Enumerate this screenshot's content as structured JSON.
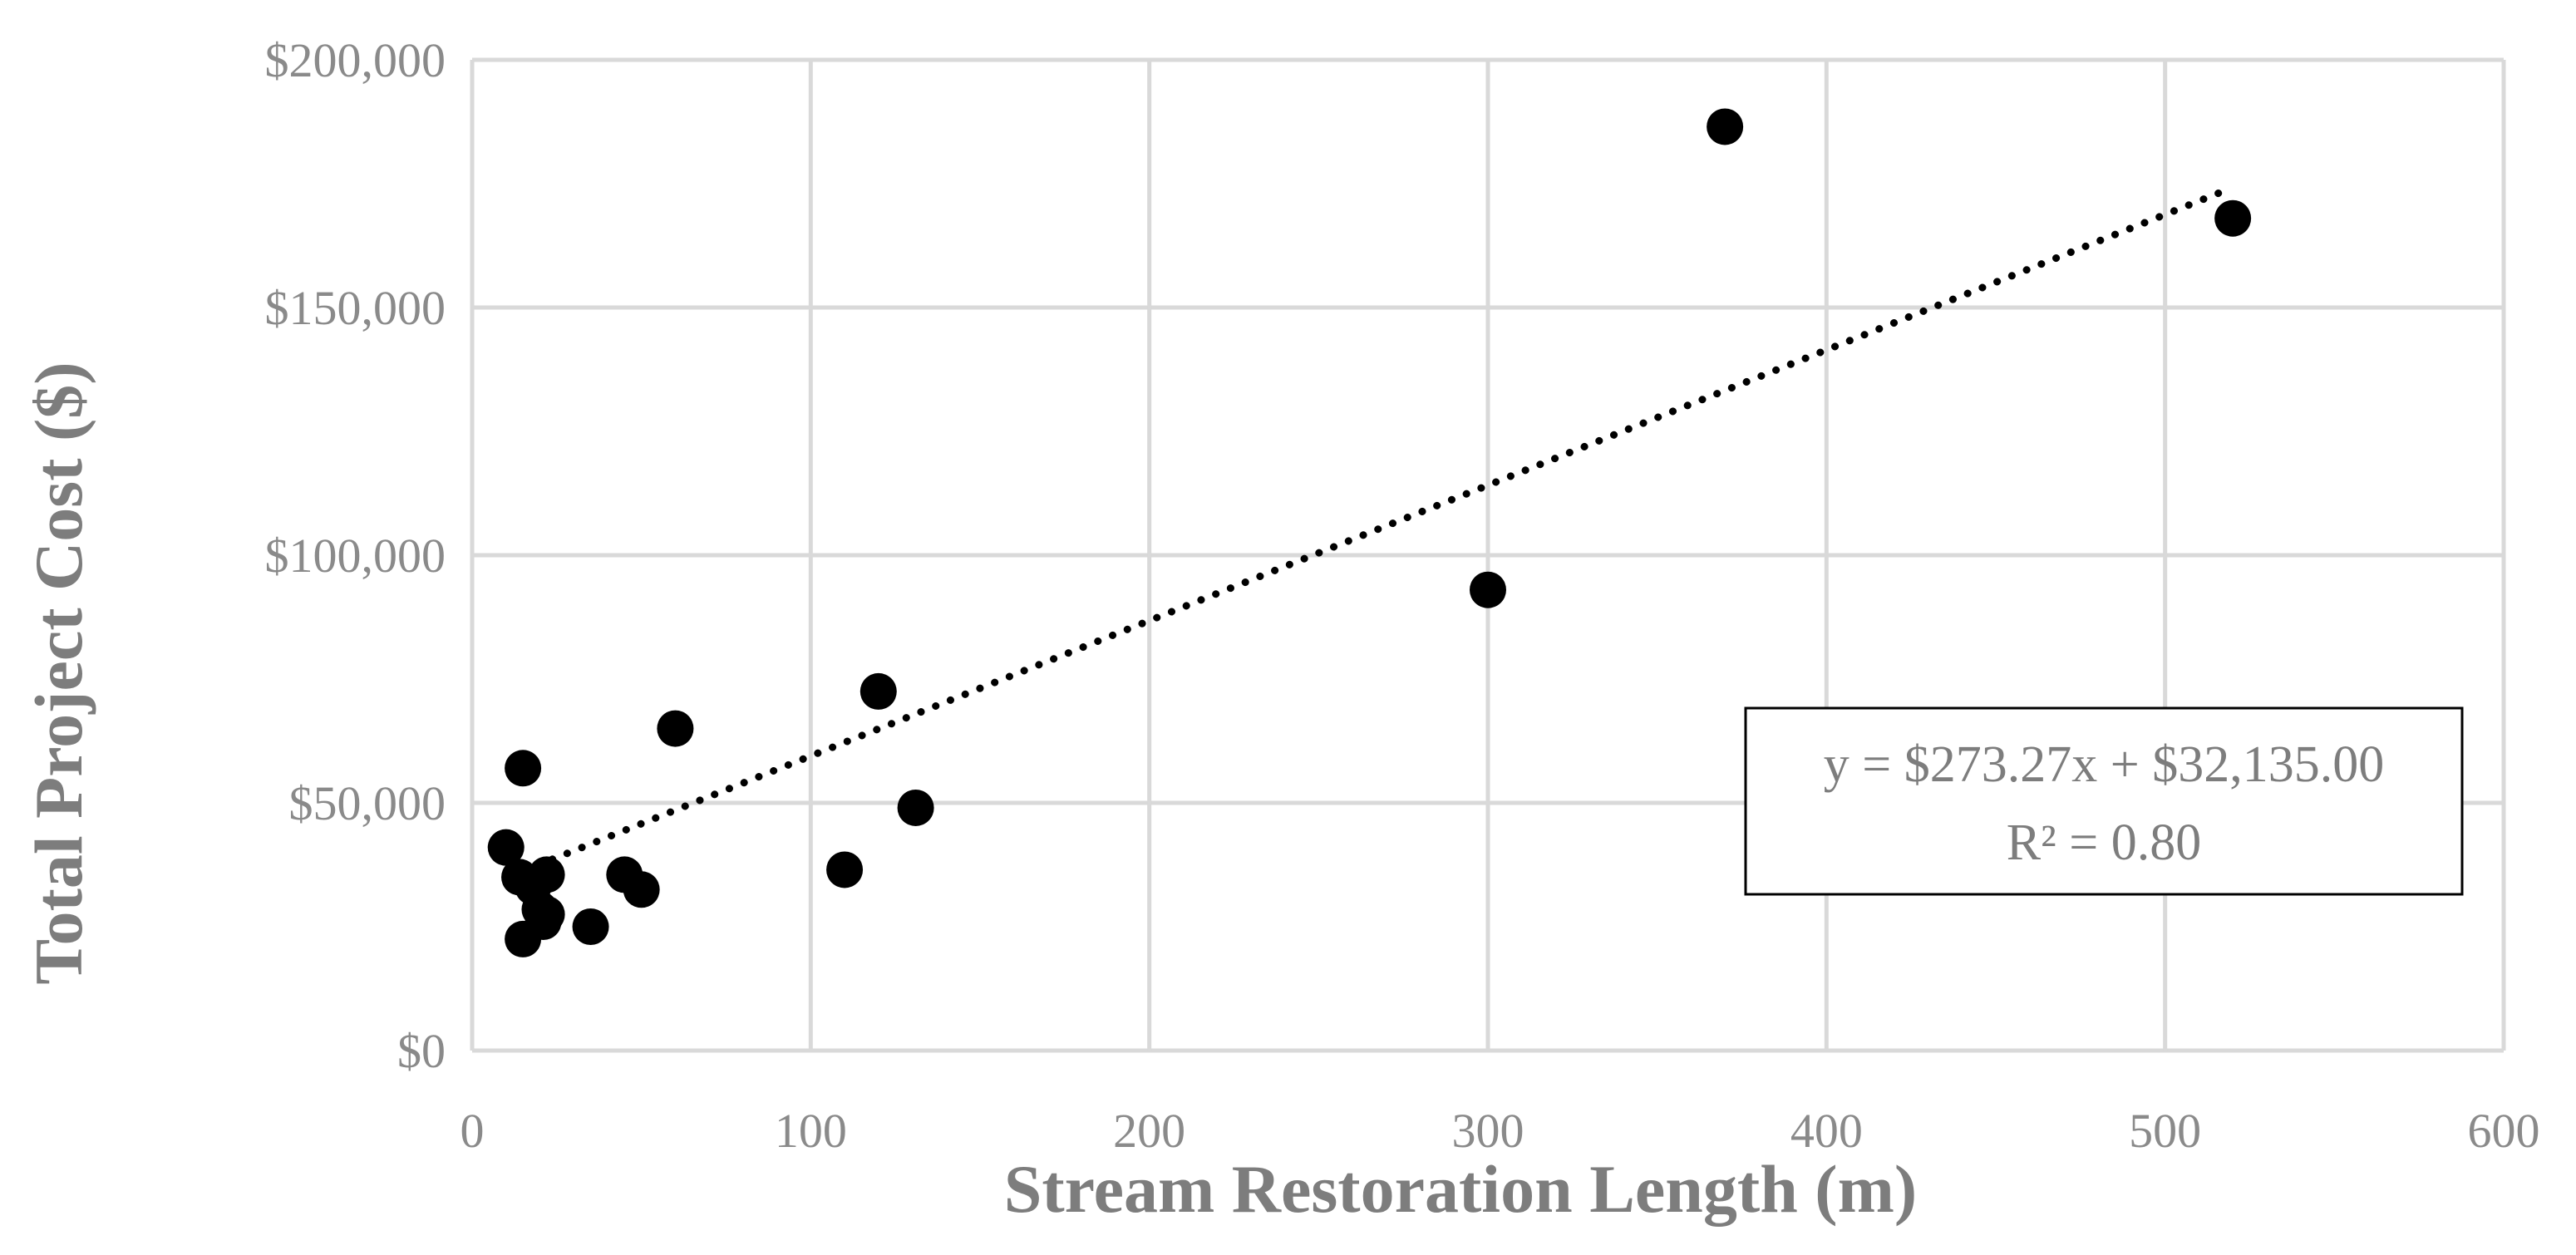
{
  "chart_data": {
    "type": "scatter",
    "title": "",
    "xlabel": "Stream Restoration Length (m)",
    "ylabel": "Total Project Cost ($)",
    "xlim": [
      0,
      600
    ],
    "ylim": [
      0,
      200000
    ],
    "x_ticks": [
      0,
      100,
      200,
      300,
      400,
      500,
      600
    ],
    "x_tick_labels": [
      "0",
      "100",
      "200",
      "300",
      "400",
      "500",
      "600"
    ],
    "y_ticks": [
      0,
      50000,
      100000,
      150000,
      200000
    ],
    "y_tick_labels": [
      "$0",
      "$50,000",
      "$100,000",
      "$150,000",
      "$200,000"
    ],
    "grid": true,
    "marker_color": "#000000",
    "grid_color": "#d9d9d9",
    "series": [
      {
        "points": [
          {
            "x": 10,
            "y": 41000
          },
          {
            "x": 14,
            "y": 35000
          },
          {
            "x": 15,
            "y": 57000
          },
          {
            "x": 15,
            "y": 22500
          },
          {
            "x": 18,
            "y": 33000
          },
          {
            "x": 20,
            "y": 28500
          },
          {
            "x": 21,
            "y": 26000
          },
          {
            "x": 22,
            "y": 35500
          },
          {
            "x": 22,
            "y": 27500
          },
          {
            "x": 35,
            "y": 25000
          },
          {
            "x": 45,
            "y": 35500
          },
          {
            "x": 50,
            "y": 32500
          },
          {
            "x": 60,
            "y": 65000
          },
          {
            "x": 110,
            "y": 36500
          },
          {
            "x": 120,
            "y": 72500
          },
          {
            "x": 131,
            "y": 49000
          },
          {
            "x": 300,
            "y": 93000
          },
          {
            "x": 370,
            "y": 186500
          },
          {
            "x": 520,
            "y": 168000
          }
        ]
      }
    ],
    "trendline": {
      "type": "linear",
      "style": "dotted",
      "slope": 273.27,
      "intercept": 32135.0,
      "x_range": [
        15,
        520
      ],
      "equation_text": "y = $273.27x + $32,135.00",
      "r2_text": "R² = 0.80"
    }
  }
}
